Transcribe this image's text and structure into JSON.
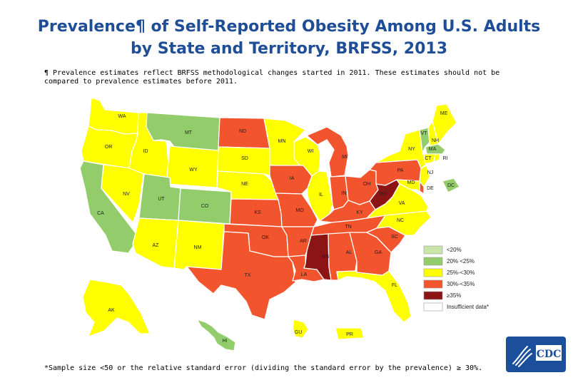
{
  "title": {
    "line1": "Prevalence¶ of Self-Reported Obesity Among U.S. Adults",
    "line2": "by State and Territory, BRFSS, 2013"
  },
  "footnote": {
    "line1": "¶ Prevalence estimates reflect BRFSS methodological changes started in 2011. These estimates should not be",
    "line2": "compared to prevalence estimates before 2011."
  },
  "categories": {
    "lt20": {
      "label": "<20%",
      "color": "#c9e6a8"
    },
    "c20_25": {
      "label": "20% <25%",
      "color": "#93cd6b"
    },
    "c25_30": {
      "label": "25%-<30%",
      "color": "#ffff00"
    },
    "c30_35": {
      "label": "30%-<35%",
      "color": "#f2542d"
    },
    "ge35": {
      "label": "≥35%",
      "color": "#8b1414"
    },
    "insuff": {
      "label": "Insufficient data*",
      "color": "#ffffff"
    }
  },
  "states": {
    "WA": "c25_30",
    "OR": "c25_30",
    "CA": "c20_25",
    "NV": "c25_30",
    "ID": "c25_30",
    "MT": "c20_25",
    "WY": "c25_30",
    "UT": "c20_25",
    "CO": "c20_25",
    "AZ": "c25_30",
    "NM": "c25_30",
    "ND": "c30_35",
    "SD": "c25_30",
    "NE": "c25_30",
    "KS": "c30_35",
    "OK": "c30_35",
    "TX": "c30_35",
    "MN": "c25_30",
    "IA": "c30_35",
    "MO": "c30_35",
    "AR": "c30_35",
    "LA": "c30_35",
    "WI": "c25_30",
    "IL": "c25_30",
    "MI": "c30_35",
    "IN": "c30_35",
    "OH": "c30_35",
    "KY": "c30_35",
    "TN": "c30_35",
    "MS": "ge35",
    "AL": "c30_35",
    "GA": "c30_35",
    "FL": "c25_30",
    "SC": "c30_35",
    "NC": "c25_30",
    "VA": "c25_30",
    "WV": "ge35",
    "PA": "c30_35",
    "NY": "c25_30",
    "VT": "c20_25",
    "NH": "c25_30",
    "ME": "c25_30",
    "MA": "c20_25",
    "CT": "c25_30",
    "RI": "c25_30",
    "NJ": "c25_30",
    "DE": "c30_35",
    "MD": "c25_30",
    "DC": "c20_25",
    "AK": "c25_30",
    "HI": "c20_25",
    "GU": "c25_30",
    "PR": "c25_30"
  },
  "bottom_note": "*Sample size <50 or the relative standard error (dividing the standard error by the prevalence) ≥ 30%.",
  "logo": {
    "text": "CDC",
    "color": "#1b4f9c"
  }
}
